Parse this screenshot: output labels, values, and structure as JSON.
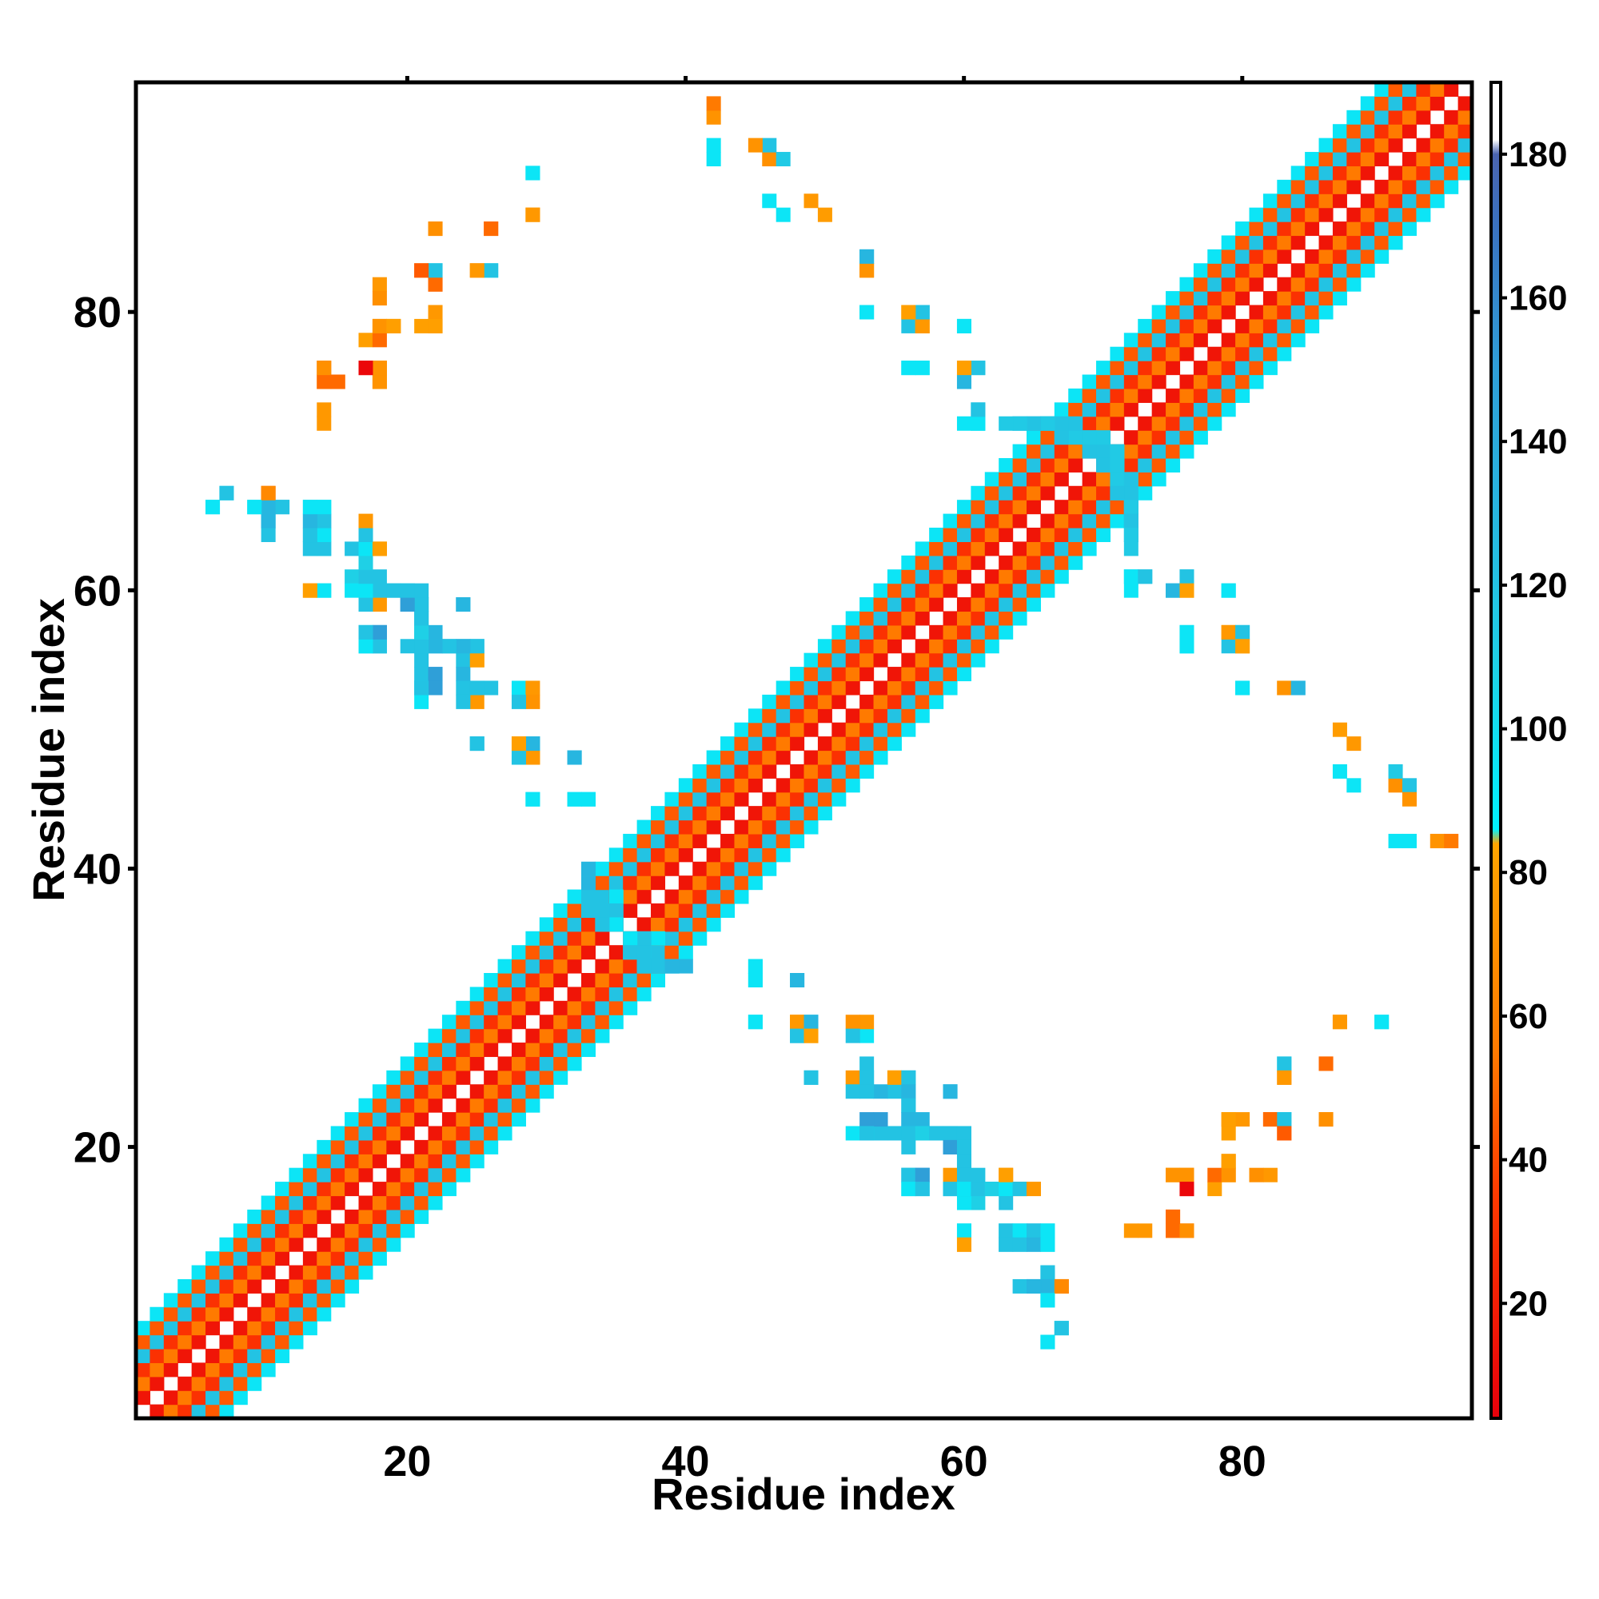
{
  "chart_data": {
    "type": "heatmap",
    "xlabel": "Residue index",
    "ylabel": "Residue index",
    "xlim": [
      1,
      96
    ],
    "ylim": [
      1,
      96
    ],
    "x_ticks": [
      20,
      40,
      60,
      80
    ],
    "y_ticks": [
      20,
      40,
      60,
      80
    ],
    "colorbar": {
      "range": [
        4,
        190
      ],
      "ticks": [
        20,
        40,
        60,
        80,
        100,
        120,
        140,
        160,
        180
      ],
      "stops": [
        {
          "value": 4,
          "color": "#e8000b"
        },
        {
          "value": 35,
          "color": "#ff3a00"
        },
        {
          "value": 55,
          "color": "#ff7a00"
        },
        {
          "value": 84,
          "color": "#ffa500"
        },
        {
          "value": 86,
          "color": "#00f2ff"
        },
        {
          "value": 110,
          "color": "#1fd0e6"
        },
        {
          "value": 130,
          "color": "#27b6e0"
        },
        {
          "value": 150,
          "color": "#2f9fd8"
        },
        {
          "value": 170,
          "color": "#3a72c0"
        },
        {
          "value": 180,
          "color": "#4a64b0"
        },
        {
          "value": 182,
          "color": "#ffffff"
        },
        {
          "value": 190,
          "color": "#ffffff"
        }
      ]
    },
    "diagonal_bands": [
      {
        "range": [
          1,
          96
        ],
        "offsets": [
          {
            "d": 1,
            "value": 15
          },
          {
            "d": 2,
            "value": 55
          },
          {
            "d": 3,
            "value": 30
          },
          {
            "d": 4,
            "value": 120
          },
          {
            "d": 5,
            "value": 45
          },
          {
            "d": 6,
            "value": 95
          }
        ]
      }
    ],
    "cells": [
      [
        42,
        94,
        72
      ],
      [
        46,
        91,
        70
      ],
      [
        47,
        91,
        115
      ],
      [
        42,
        91,
        95
      ],
      [
        50,
        87,
        78
      ],
      [
        47,
        87,
        95
      ],
      [
        29,
        90,
        95
      ],
      [
        29,
        87,
        80
      ],
      [
        22,
        86,
        75
      ],
      [
        26,
        86,
        50
      ],
      [
        21,
        83,
        55
      ],
      [
        22,
        83,
        98
      ],
      [
        25,
        83,
        65
      ],
      [
        26,
        83,
        98
      ],
      [
        22,
        82,
        45
      ],
      [
        18,
        82,
        75
      ],
      [
        21,
        79,
        80
      ],
      [
        22,
        79,
        72
      ],
      [
        18,
        79,
        80
      ],
      [
        19,
        79,
        72
      ],
      [
        17,
        78,
        80
      ],
      [
        14,
        76,
        50
      ],
      [
        17,
        76,
        10
      ],
      [
        18,
        76,
        70
      ],
      [
        14,
        75,
        80
      ],
      [
        15,
        75,
        55
      ],
      [
        18,
        75,
        78
      ],
      [
        14,
        72,
        75
      ],
      [
        53,
        84,
        115
      ],
      [
        53,
        83,
        72
      ],
      [
        53,
        80,
        95
      ],
      [
        56,
        80,
        75
      ],
      [
        57,
        80,
        120
      ],
      [
        56,
        79,
        120
      ],
      [
        57,
        79,
        80
      ],
      [
        60,
        79,
        95
      ],
      [
        56,
        76,
        95
      ],
      [
        57,
        76,
        95
      ],
      [
        60,
        76,
        75
      ],
      [
        61,
        76,
        110
      ],
      [
        60,
        75,
        120
      ],
      [
        61,
        73,
        115
      ],
      [
        60,
        72,
        95
      ],
      [
        61,
        72,
        95
      ],
      [
        64,
        72,
        130
      ],
      [
        65,
        72,
        130
      ],
      [
        66,
        72,
        130
      ],
      [
        67,
        72,
        120
      ],
      [
        68,
        71,
        115
      ],
      [
        69,
        71,
        120
      ],
      [
        70,
        70,
        120
      ],
      [
        71,
        70,
        115
      ],
      [
        70,
        69,
        120
      ],
      [
        71,
        69,
        115
      ],
      [
        72,
        68,
        120
      ],
      [
        71,
        67,
        120
      ],
      [
        72,
        66,
        115
      ],
      [
        72,
        65,
        120
      ],
      [
        72,
        64,
        115
      ],
      [
        72,
        63,
        115
      ],
      [
        72,
        61,
        95
      ],
      [
        73,
        61,
        120
      ],
      [
        75,
        60,
        130
      ],
      [
        76,
        61,
        120
      ],
      [
        76,
        60,
        80
      ],
      [
        79,
        60,
        95
      ],
      [
        76,
        57,
        95
      ],
      [
        76,
        56,
        95
      ],
      [
        79,
        57,
        75
      ],
      [
        80,
        57,
        120
      ],
      [
        80,
        56,
        80
      ],
      [
        80,
        53,
        95
      ],
      [
        83,
        53,
        72
      ],
      [
        84,
        53,
        130
      ],
      [
        88,
        49,
        75
      ],
      [
        88,
        46,
        95
      ],
      [
        92,
        46,
        120
      ],
      [
        92,
        45,
        72
      ],
      [
        92,
        42,
        95
      ],
      [
        95,
        42,
        55
      ],
      [
        6,
        66,
        95
      ],
      [
        7,
        67,
        95
      ],
      [
        9,
        66,
        95
      ],
      [
        10,
        67,
        50
      ],
      [
        10,
        66,
        72
      ],
      [
        11,
        66,
        120
      ],
      [
        10,
        65,
        120
      ],
      [
        10,
        64,
        120
      ],
      [
        13,
        66,
        110
      ],
      [
        14,
        66,
        95
      ],
      [
        13,
        65,
        120
      ],
      [
        14,
        65,
        130
      ],
      [
        13,
        64,
        120
      ],
      [
        14,
        64,
        115
      ],
      [
        13,
        63,
        120
      ],
      [
        14,
        63,
        95
      ],
      [
        16,
        63,
        120
      ],
      [
        17,
        64,
        75
      ],
      [
        17,
        63,
        130
      ],
      [
        18,
        63,
        70
      ],
      [
        17,
        62,
        120
      ],
      [
        16,
        61,
        110
      ],
      [
        17,
        61,
        110
      ],
      [
        16,
        60,
        95
      ],
      [
        17,
        60,
        120
      ],
      [
        18,
        60,
        130
      ],
      [
        19,
        60,
        120
      ],
      [
        20,
        60,
        95
      ],
      [
        17,
        59,
        120
      ],
      [
        18,
        59,
        75
      ],
      [
        20,
        59,
        150
      ],
      [
        21,
        59,
        120
      ],
      [
        21,
        58,
        120
      ],
      [
        21,
        57,
        120
      ],
      [
        22,
        57,
        130
      ],
      [
        24,
        59,
        130
      ],
      [
        17,
        57,
        95
      ],
      [
        18,
        57,
        150
      ],
      [
        17,
        56,
        120
      ],
      [
        18,
        56,
        120
      ],
      [
        20,
        56,
        120
      ],
      [
        21,
        56,
        130
      ],
      [
        22,
        56,
        120
      ],
      [
        23,
        56,
        130
      ],
      [
        24,
        56,
        120
      ],
      [
        25,
        56,
        130
      ],
      [
        25,
        55,
        80
      ],
      [
        24,
        55,
        120
      ],
      [
        13,
        60,
        70
      ],
      [
        14,
        60,
        95
      ],
      [
        21,
        54,
        120
      ],
      [
        22,
        54,
        150
      ],
      [
        24,
        54,
        130
      ],
      [
        21,
        53,
        95
      ],
      [
        24,
        53,
        120
      ],
      [
        25,
        53,
        130
      ],
      [
        26,
        53,
        120
      ],
      [
        28,
        53,
        95
      ],
      [
        29,
        53,
        75
      ],
      [
        25,
        49,
        130
      ],
      [
        28,
        49,
        75
      ],
      [
        29,
        49,
        110
      ],
      [
        28,
        48,
        130
      ],
      [
        29,
        48,
        75
      ],
      [
        32,
        48,
        120
      ],
      [
        29,
        45,
        95
      ],
      [
        32,
        45,
        95
      ],
      [
        33,
        45,
        95
      ],
      [
        33,
        40,
        130
      ],
      [
        33,
        39,
        120
      ],
      [
        35,
        38,
        95
      ],
      [
        33,
        38,
        120
      ],
      [
        33,
        37,
        120
      ],
      [
        34,
        37,
        95
      ],
      [
        35,
        37,
        120
      ],
      [
        34,
        36,
        120
      ],
      [
        36,
        35,
        95
      ],
      [
        36,
        34,
        120
      ],
      [
        37,
        34,
        120
      ],
      [
        38,
        33,
        120
      ],
      [
        39,
        33,
        130
      ],
      [
        37,
        33,
        120
      ],
      [
        45,
        33,
        95
      ],
      [
        45,
        32,
        95
      ],
      [
        48,
        32,
        130
      ],
      [
        45,
        29,
        95
      ],
      [
        48,
        29,
        75
      ],
      [
        49,
        29,
        130
      ],
      [
        52,
        29,
        72
      ],
      [
        48,
        28,
        120
      ],
      [
        49,
        28,
        80
      ],
      [
        52,
        28,
        120
      ],
      [
        49,
        25,
        120
      ],
      [
        52,
        25,
        75
      ],
      [
        53,
        25,
        120
      ],
      [
        52,
        24,
        120
      ],
      [
        55,
        25,
        80
      ],
      [
        56,
        25,
        120
      ],
      [
        56,
        24,
        130
      ],
      [
        59,
        24,
        130
      ],
      [
        56,
        23,
        120
      ],
      [
        56,
        22,
        130
      ],
      [
        53,
        22,
        150
      ],
      [
        52,
        21,
        95
      ],
      [
        53,
        21,
        120
      ],
      [
        55,
        21,
        120
      ],
      [
        56,
        21,
        120
      ],
      [
        57,
        21,
        110
      ],
      [
        58,
        21,
        120
      ],
      [
        59,
        21,
        120
      ],
      [
        59,
        20,
        150
      ],
      [
        60,
        21,
        120
      ],
      [
        60,
        20,
        120
      ],
      [
        60,
        19,
        120
      ],
      [
        56,
        18,
        120
      ],
      [
        57,
        18,
        150
      ],
      [
        60,
        18,
        120
      ],
      [
        61,
        18,
        120
      ],
      [
        56,
        17,
        95
      ],
      [
        57,
        17,
        120
      ],
      [
        59,
        17,
        120
      ],
      [
        60,
        17,
        95
      ],
      [
        61,
        17,
        120
      ],
      [
        62,
        17,
        110
      ],
      [
        63,
        17,
        95
      ],
      [
        63,
        18,
        80
      ],
      [
        64,
        17,
        120
      ],
      [
        65,
        17,
        75
      ],
      [
        60,
        14,
        95
      ],
      [
        60,
        13,
        80
      ],
      [
        63,
        14,
        120
      ],
      [
        64,
        14,
        95
      ],
      [
        65,
        14,
        120
      ],
      [
        66,
        14,
        95
      ],
      [
        63,
        13,
        120
      ],
      [
        64,
        13,
        120
      ],
      [
        65,
        13,
        130
      ],
      [
        66,
        13,
        95
      ],
      [
        66,
        11,
        120
      ],
      [
        66,
        10,
        130
      ],
      [
        67,
        10,
        65
      ],
      [
        65,
        10,
        130
      ],
      [
        66,
        9,
        95
      ],
      [
        67,
        7,
        120
      ],
      [
        66,
        6,
        95
      ],
      [
        73,
        14,
        75
      ],
      [
        75,
        14,
        50
      ],
      [
        76,
        14,
        70
      ],
      [
        75,
        15,
        50
      ],
      [
        75,
        18,
        72
      ],
      [
        76,
        18,
        72
      ],
      [
        76,
        17,
        8
      ],
      [
        78,
        18,
        50
      ],
      [
        79,
        18,
        72
      ],
      [
        79,
        19,
        80
      ],
      [
        81,
        18,
        70
      ],
      [
        80,
        22,
        75
      ],
      [
        79,
        22,
        80
      ],
      [
        82,
        22,
        50
      ],
      [
        83,
        22,
        120
      ],
      [
        83,
        21,
        45
      ],
      [
        86,
        22,
        70
      ],
      [
        83,
        26,
        120
      ],
      [
        83,
        25,
        75
      ],
      [
        86,
        26,
        50
      ],
      [
        87,
        29,
        75
      ],
      [
        90,
        29,
        95
      ]
    ]
  }
}
